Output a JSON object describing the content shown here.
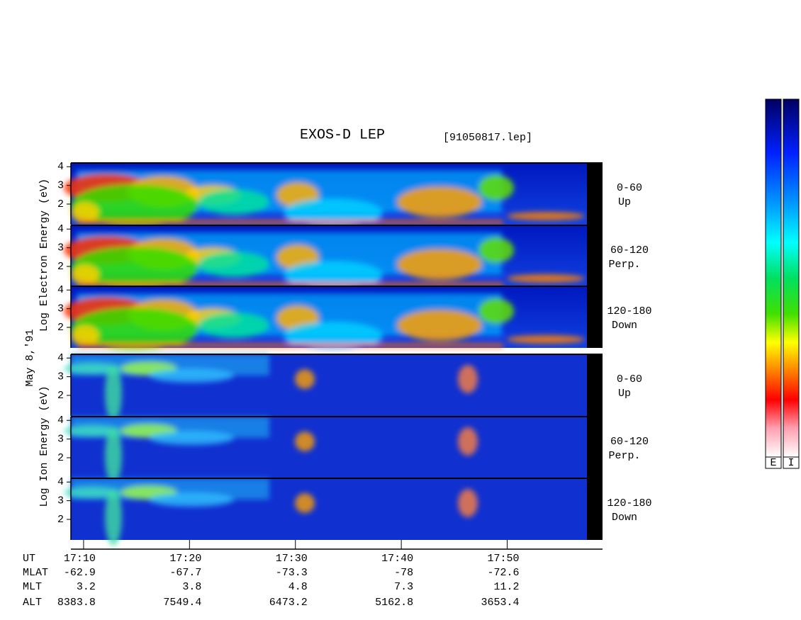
{
  "chart_data": {
    "type": "spectrogram",
    "title": "EXOS-D LEP",
    "subtitle": "[91050817.lep]",
    "date_label": "May 8,'91",
    "y_labels": [
      "Log Electron Energy (eV)",
      "Log Ion Energy (eV)"
    ],
    "panels": [
      {
        "pitch": "0-60",
        "direction": "Up"
      },
      {
        "pitch": "60-120",
        "direction": "Perp."
      },
      {
        "pitch": "120-180",
        "direction": "Down"
      },
      {
        "pitch": "0-60",
        "direction": "Up"
      },
      {
        "pitch": "60-120",
        "direction": "Perp."
      },
      {
        "pitch": "120-180",
        "direction": "Down"
      }
    ],
    "ylim": [
      0.9,
      4.2
    ],
    "yticks": [
      2,
      3,
      4
    ],
    "xlim": [
      8.8,
      59
    ],
    "xticks": [
      {
        "value": 10,
        "label": "17:10"
      },
      {
        "value": 20,
        "label": "17:20"
      },
      {
        "value": 30,
        "label": "17:30"
      },
      {
        "value": 40,
        "label": "17:40"
      },
      {
        "value": 50,
        "label": "17:50"
      }
    ],
    "orbit_rows": [
      {
        "label": "UT"
      },
      {
        "label": "MLAT",
        "values": [
          -62.9,
          -67.7,
          -73.3,
          -78.0,
          -72.6
        ]
      },
      {
        "label": "MLT",
        "values": [
          3.2,
          3.8,
          4.8,
          7.3,
          11.2
        ]
      },
      {
        "label": "ALT",
        "values": [
          8383.8,
          7549.4,
          6473.2,
          5162.8,
          3653.4
        ]
      }
    ],
    "colorbar_labels": [
      "E",
      "I"
    ]
  }
}
